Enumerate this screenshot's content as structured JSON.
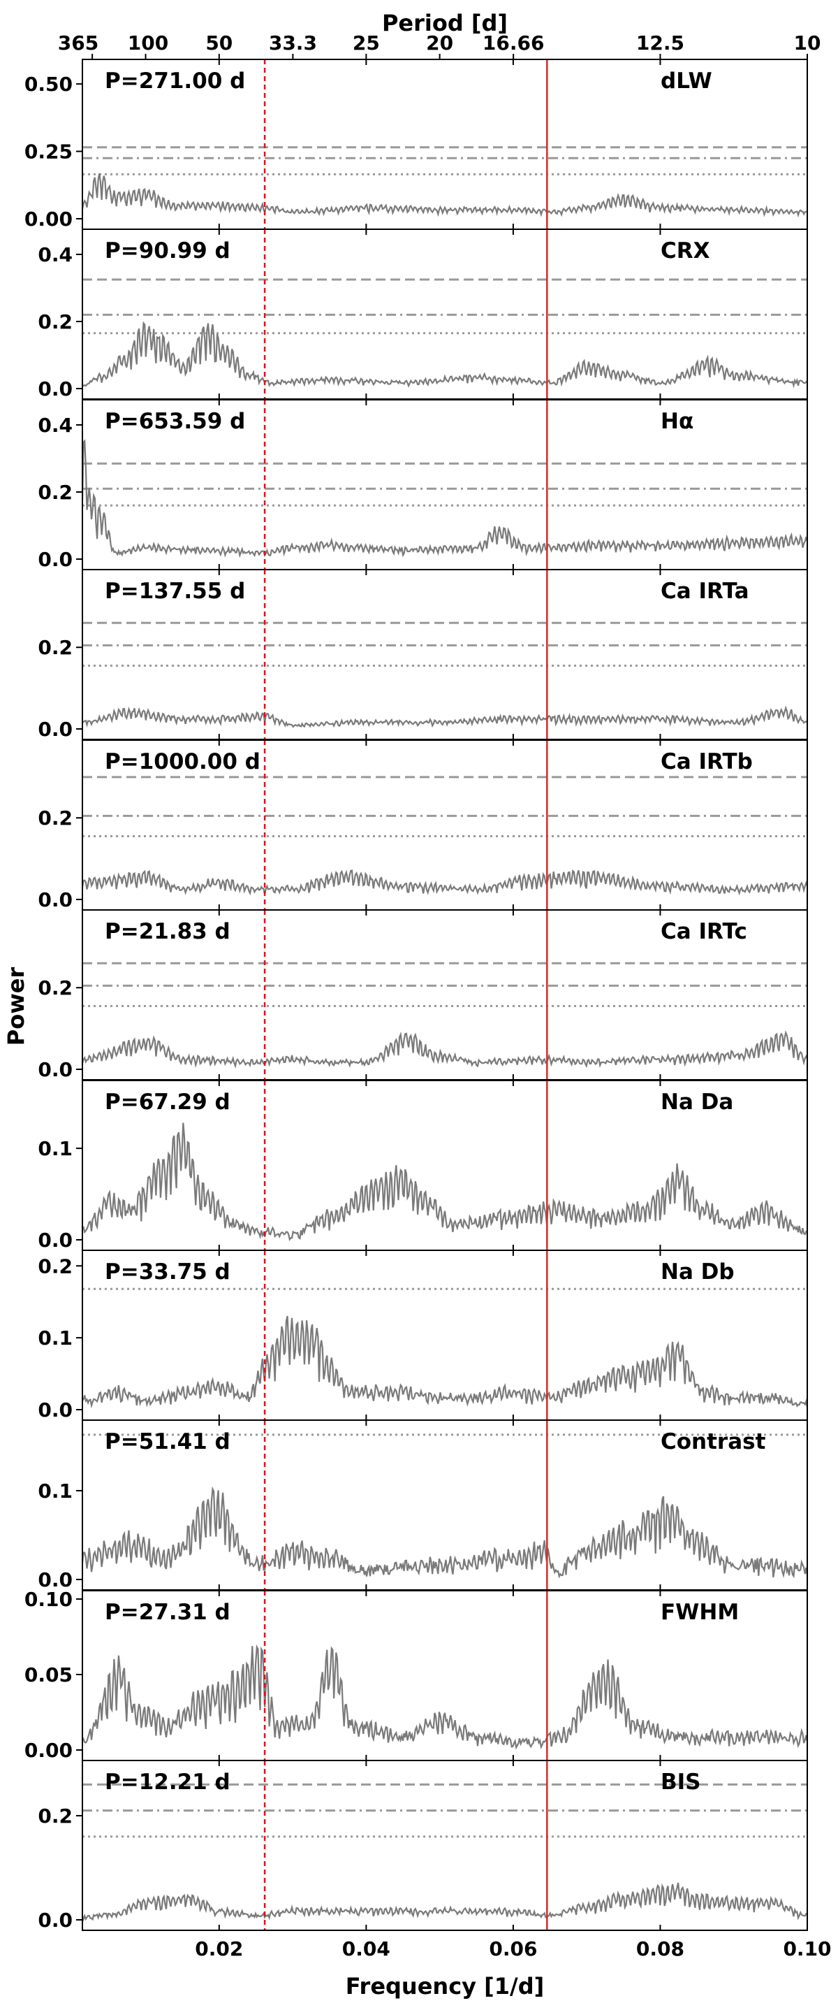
{
  "chart_data": {
    "type": "line",
    "top_axis": {
      "title": "Period [d]",
      "ticks": [
        {
          "label": "365",
          "period": 365
        },
        {
          "label": "100",
          "period": 100
        },
        {
          "label": "50",
          "period": 50
        },
        {
          "label": "33.3",
          "period": 33.3
        },
        {
          "label": "25",
          "period": 25
        },
        {
          "label": "20",
          "period": 20
        },
        {
          "label": "16.66",
          "period": 16.66
        },
        {
          "label": "12.5",
          "period": 12.5
        },
        {
          "label": "10",
          "period": 10
        }
      ]
    },
    "xaxis": {
      "title": "Frequency [1/d]",
      "xlim": [
        0.0014,
        0.1
      ],
      "ticks": [
        0.02,
        0.04,
        0.06,
        0.08,
        0.1
      ],
      "tick_labels": [
        "0.02",
        "0.04",
        "0.06",
        "0.08",
        "0.10"
      ]
    },
    "ylabel": "Power",
    "vertical_lines": [
      {
        "x": 0.0262,
        "color": "#e0101f",
        "style": "dashed"
      },
      {
        "x": 0.0646,
        "color": "#d42a2a",
        "style": "solid"
      }
    ],
    "fap_styles": [
      "dashed",
      "dashdot",
      "dotted"
    ],
    "line_color": "#7a7a7a",
    "threshold_color": "#999999",
    "panels": [
      {
        "indicator": "dLW",
        "period_label": "P=271.00 d",
        "ylim": [
          0,
          0.56
        ],
        "yticks": [
          0.0,
          0.25,
          0.5
        ],
        "ytick_labels": [
          "0.00",
          "0.25",
          "0.50"
        ],
        "fap": [
          0.265,
          0.225,
          0.165
        ],
        "anchors": [
          [
            0.0014,
            0.06
          ],
          [
            0.0037,
            0.17
          ],
          [
            0.006,
            0.1
          ],
          [
            0.01,
            0.11
          ],
          [
            0.014,
            0.06
          ],
          [
            0.02,
            0.06
          ],
          [
            0.026,
            0.05
          ],
          [
            0.03,
            0.03
          ],
          [
            0.04,
            0.05
          ],
          [
            0.05,
            0.04
          ],
          [
            0.06,
            0.04
          ],
          [
            0.065,
            0.03
          ],
          [
            0.07,
            0.05
          ],
          [
            0.075,
            0.09
          ],
          [
            0.08,
            0.05
          ],
          [
            0.09,
            0.04
          ],
          [
            0.1,
            0.03
          ]
        ],
        "base": 0.01,
        "amp": 0.028,
        "seed": 11
      },
      {
        "indicator": "CRX",
        "period_label": "P=90.99 d",
        "ylim": [
          0,
          0.45
        ],
        "yticks": [
          0.0,
          0.2,
          0.4
        ],
        "ytick_labels": [
          "0.0",
          "0.2",
          "0.4"
        ],
        "fap": [
          0.325,
          0.22,
          0.165
        ],
        "anchors": [
          [
            0.0014,
            0.01
          ],
          [
            0.004,
            0.04
          ],
          [
            0.007,
            0.1
          ],
          [
            0.0099,
            0.2
          ],
          [
            0.012,
            0.16
          ],
          [
            0.015,
            0.08
          ],
          [
            0.0185,
            0.2
          ],
          [
            0.021,
            0.13
          ],
          [
            0.024,
            0.05
          ],
          [
            0.027,
            0.02
          ],
          [
            0.035,
            0.03
          ],
          [
            0.045,
            0.02
          ],
          [
            0.055,
            0.04
          ],
          [
            0.06,
            0.03
          ],
          [
            0.065,
            0.02
          ],
          [
            0.07,
            0.08
          ],
          [
            0.075,
            0.05
          ],
          [
            0.08,
            0.02
          ],
          [
            0.087,
            0.09
          ],
          [
            0.09,
            0.05
          ],
          [
            0.1,
            0.02
          ]
        ],
        "base": 0.008,
        "amp": 0.03,
        "seed": 23
      },
      {
        "indicator": "Hα",
        "period_label": "P=653.59 d",
        "ylim": [
          0,
          0.45
        ],
        "yticks": [
          0.0,
          0.2,
          0.4
        ],
        "ytick_labels": [
          "0.0",
          "0.2",
          "0.4"
        ],
        "fap": [
          0.285,
          0.21,
          0.16
        ],
        "anchors": [
          [
            0.0014,
            0.38
          ],
          [
            0.0025,
            0.2
          ],
          [
            0.004,
            0.15
          ],
          [
            0.006,
            0.02
          ],
          [
            0.01,
            0.04
          ],
          [
            0.02,
            0.03
          ],
          [
            0.026,
            0.02
          ],
          [
            0.03,
            0.04
          ],
          [
            0.035,
            0.05
          ],
          [
            0.045,
            0.03
          ],
          [
            0.055,
            0.04
          ],
          [
            0.058,
            0.1
          ],
          [
            0.062,
            0.04
          ],
          [
            0.07,
            0.05
          ],
          [
            0.08,
            0.05
          ],
          [
            0.09,
            0.06
          ],
          [
            0.1,
            0.07
          ]
        ],
        "base": 0.01,
        "amp": 0.035,
        "seed": 37
      },
      {
        "indicator": "Ca IRTa",
        "period_label": "P=137.55 d",
        "ylim": [
          0,
          0.37
        ],
        "yticks": [
          0.0,
          0.2
        ],
        "ytick_labels": [
          "0.0",
          "0.2"
        ],
        "fap": [
          0.26,
          0.205,
          0.155
        ],
        "anchors": [
          [
            0.0014,
            0.02
          ],
          [
            0.008,
            0.05
          ],
          [
            0.015,
            0.03
          ],
          [
            0.02,
            0.03
          ],
          [
            0.026,
            0.04
          ],
          [
            0.03,
            0.01
          ],
          [
            0.04,
            0.02
          ],
          [
            0.05,
            0.02
          ],
          [
            0.06,
            0.03
          ],
          [
            0.07,
            0.03
          ],
          [
            0.08,
            0.03
          ],
          [
            0.09,
            0.02
          ],
          [
            0.097,
            0.05
          ],
          [
            0.1,
            0.02
          ]
        ],
        "base": 0.005,
        "amp": 0.02,
        "seed": 41
      },
      {
        "indicator": "Ca IRTb",
        "period_label": "P=1000.00 d",
        "ylim": [
          0,
          0.37
        ],
        "yticks": [
          0.0,
          0.2
        ],
        "ytick_labels": [
          "0.0",
          "0.2"
        ],
        "fap": [
          0.3,
          0.205,
          0.155
        ],
        "anchors": [
          [
            0.0014,
            0.05
          ],
          [
            0.01,
            0.07
          ],
          [
            0.015,
            0.03
          ],
          [
            0.02,
            0.05
          ],
          [
            0.025,
            0.03
          ],
          [
            0.03,
            0.03
          ],
          [
            0.037,
            0.07
          ],
          [
            0.045,
            0.04
          ],
          [
            0.055,
            0.03
          ],
          [
            0.062,
            0.06
          ],
          [
            0.07,
            0.07
          ],
          [
            0.08,
            0.04
          ],
          [
            0.09,
            0.03
          ],
          [
            0.1,
            0.04
          ]
        ],
        "base": 0.008,
        "amp": 0.03,
        "seed": 53
      },
      {
        "indicator": "Ca IRTc",
        "period_label": "P=21.83 d",
        "ylim": [
          0,
          0.37
        ],
        "yticks": [
          0.0,
          0.2
        ],
        "ytick_labels": [
          "0.0",
          "0.2"
        ],
        "fap": [
          0.26,
          0.205,
          0.155
        ],
        "anchors": [
          [
            0.0014,
            0.03
          ],
          [
            0.0105,
            0.08
          ],
          [
            0.015,
            0.03
          ],
          [
            0.025,
            0.02
          ],
          [
            0.03,
            0.03
          ],
          [
            0.035,
            0.02
          ],
          [
            0.04,
            0.02
          ],
          [
            0.0455,
            0.09
          ],
          [
            0.05,
            0.04
          ],
          [
            0.055,
            0.02
          ],
          [
            0.065,
            0.03
          ],
          [
            0.07,
            0.02
          ],
          [
            0.08,
            0.03
          ],
          [
            0.09,
            0.04
          ],
          [
            0.097,
            0.09
          ],
          [
            0.1,
            0.03
          ]
        ],
        "base": 0.006,
        "amp": 0.028,
        "seed": 61
      },
      {
        "indicator": "Na Da",
        "period_label": "P=67.29 d",
        "ylim": [
          0,
          0.165
        ],
        "yticks": [
          0.0,
          0.1
        ],
        "ytick_labels": [
          "0.0",
          "0.1"
        ],
        "anchors": [
          [
            0.0014,
            0.01
          ],
          [
            0.005,
            0.05
          ],
          [
            0.008,
            0.04
          ],
          [
            0.012,
            0.09
          ],
          [
            0.0149,
            0.125
          ],
          [
            0.018,
            0.06
          ],
          [
            0.022,
            0.02
          ],
          [
            0.026,
            0.01
          ],
          [
            0.03,
            0.005
          ],
          [
            0.035,
            0.03
          ],
          [
            0.042,
            0.07
          ],
          [
            0.045,
            0.08
          ],
          [
            0.048,
            0.05
          ],
          [
            0.052,
            0.02
          ],
          [
            0.06,
            0.03
          ],
          [
            0.065,
            0.04
          ],
          [
            0.072,
            0.03
          ],
          [
            0.078,
            0.04
          ],
          [
            0.0825,
            0.08
          ],
          [
            0.086,
            0.04
          ],
          [
            0.09,
            0.02
          ],
          [
            0.094,
            0.04
          ],
          [
            0.1,
            0.01
          ]
        ],
        "base": 0.005,
        "amp": 0.028,
        "seed": 71
      },
      {
        "indicator": "Na Db",
        "period_label": "P=33.75 d",
        "ylim": [
          0,
          0.21
        ],
        "yticks": [
          0.0,
          0.1,
          0.2
        ],
        "ytick_labels": [
          "0.0",
          "0.1",
          "0.2"
        ],
        "fap": [
          null,
          null,
          0.168
        ],
        "anchors": [
          [
            0.0014,
            0.015
          ],
          [
            0.006,
            0.03
          ],
          [
            0.01,
            0.015
          ],
          [
            0.016,
            0.03
          ],
          [
            0.02,
            0.04
          ],
          [
            0.024,
            0.02
          ],
          [
            0.026,
            0.07
          ],
          [
            0.0296,
            0.13
          ],
          [
            0.033,
            0.12
          ],
          [
            0.035,
            0.07
          ],
          [
            0.038,
            0.03
          ],
          [
            0.045,
            0.03
          ],
          [
            0.05,
            0.02
          ],
          [
            0.055,
            0.02
          ],
          [
            0.06,
            0.03
          ],
          [
            0.065,
            0.02
          ],
          [
            0.07,
            0.04
          ],
          [
            0.075,
            0.06
          ],
          [
            0.079,
            0.07
          ],
          [
            0.082,
            0.1
          ],
          [
            0.086,
            0.03
          ],
          [
            0.09,
            0.02
          ],
          [
            0.095,
            0.02
          ],
          [
            0.1,
            0.01
          ]
        ],
        "base": 0.005,
        "amp": 0.03,
        "seed": 83
      },
      {
        "indicator": "Contrast",
        "period_label": "P=51.41 d",
        "ylim": [
          0,
          0.17
        ],
        "yticks": [
          0.0,
          0.1
        ],
        "ytick_labels": [
          "0.0",
          "0.1"
        ],
        "fap": [
          null,
          null,
          0.163
        ],
        "anchors": [
          [
            0.0014,
            0.03
          ],
          [
            0.008,
            0.05
          ],
          [
            0.013,
            0.03
          ],
          [
            0.0194,
            0.1
          ],
          [
            0.025,
            0.02
          ],
          [
            0.03,
            0.04
          ],
          [
            0.035,
            0.03
          ],
          [
            0.04,
            0.01
          ],
          [
            0.05,
            0.02
          ],
          [
            0.06,
            0.03
          ],
          [
            0.064,
            0.04
          ],
          [
            0.066,
            0.01
          ],
          [
            0.07,
            0.04
          ],
          [
            0.075,
            0.06
          ],
          [
            0.081,
            0.09
          ],
          [
            0.085,
            0.05
          ],
          [
            0.09,
            0.02
          ],
          [
            0.1,
            0.015
          ]
        ],
        "base": 0.004,
        "amp": 0.04,
        "seed": 97
      },
      {
        "indicator": "FWHM",
        "period_label": "P=27.31 d",
        "ylim": [
          0,
          0.1
        ],
        "yticks": [
          0.0,
          0.05,
          0.1
        ],
        "ytick_labels": [
          "0.00",
          "0.05",
          "0.10"
        ],
        "anchors": [
          [
            0.0014,
            0.008
          ],
          [
            0.0065,
            0.06
          ],
          [
            0.009,
            0.03
          ],
          [
            0.013,
            0.02
          ],
          [
            0.018,
            0.04
          ],
          [
            0.022,
            0.05
          ],
          [
            0.0255,
            0.07
          ],
          [
            0.028,
            0.02
          ],
          [
            0.032,
            0.02
          ],
          [
            0.0355,
            0.07
          ],
          [
            0.038,
            0.02
          ],
          [
            0.045,
            0.01
          ],
          [
            0.05,
            0.025
          ],
          [
            0.055,
            0.01
          ],
          [
            0.062,
            0.005
          ],
          [
            0.066,
            0.01
          ],
          [
            0.0725,
            0.06
          ],
          [
            0.077,
            0.02
          ],
          [
            0.082,
            0.01
          ],
          [
            0.09,
            0.01
          ],
          [
            0.1,
            0.01
          ]
        ],
        "base": 0.003,
        "amp": 0.02,
        "seed": 101
      },
      {
        "indicator": "BIS",
        "period_label": "P=12.21 d",
        "ylim": [
          0,
          0.29
        ],
        "yticks": [
          0.0,
          0.2
        ],
        "ytick_labels": [
          "0.0",
          "0.2"
        ],
        "fap": [
          0.26,
          0.21,
          0.16
        ],
        "anchors": [
          [
            0.0014,
            0.005
          ],
          [
            0.005,
            0.01
          ],
          [
            0.01,
            0.04
          ],
          [
            0.016,
            0.05
          ],
          [
            0.02,
            0.02
          ],
          [
            0.025,
            0.01
          ],
          [
            0.03,
            0.02
          ],
          [
            0.04,
            0.02
          ],
          [
            0.05,
            0.02
          ],
          [
            0.06,
            0.02
          ],
          [
            0.065,
            0.01
          ],
          [
            0.07,
            0.03
          ],
          [
            0.075,
            0.05
          ],
          [
            0.082,
            0.07
          ],
          [
            0.085,
            0.05
          ],
          [
            0.09,
            0.04
          ],
          [
            0.095,
            0.04
          ],
          [
            0.1,
            0.01
          ]
        ],
        "base": 0.004,
        "amp": 0.025,
        "seed": 113
      }
    ]
  }
}
